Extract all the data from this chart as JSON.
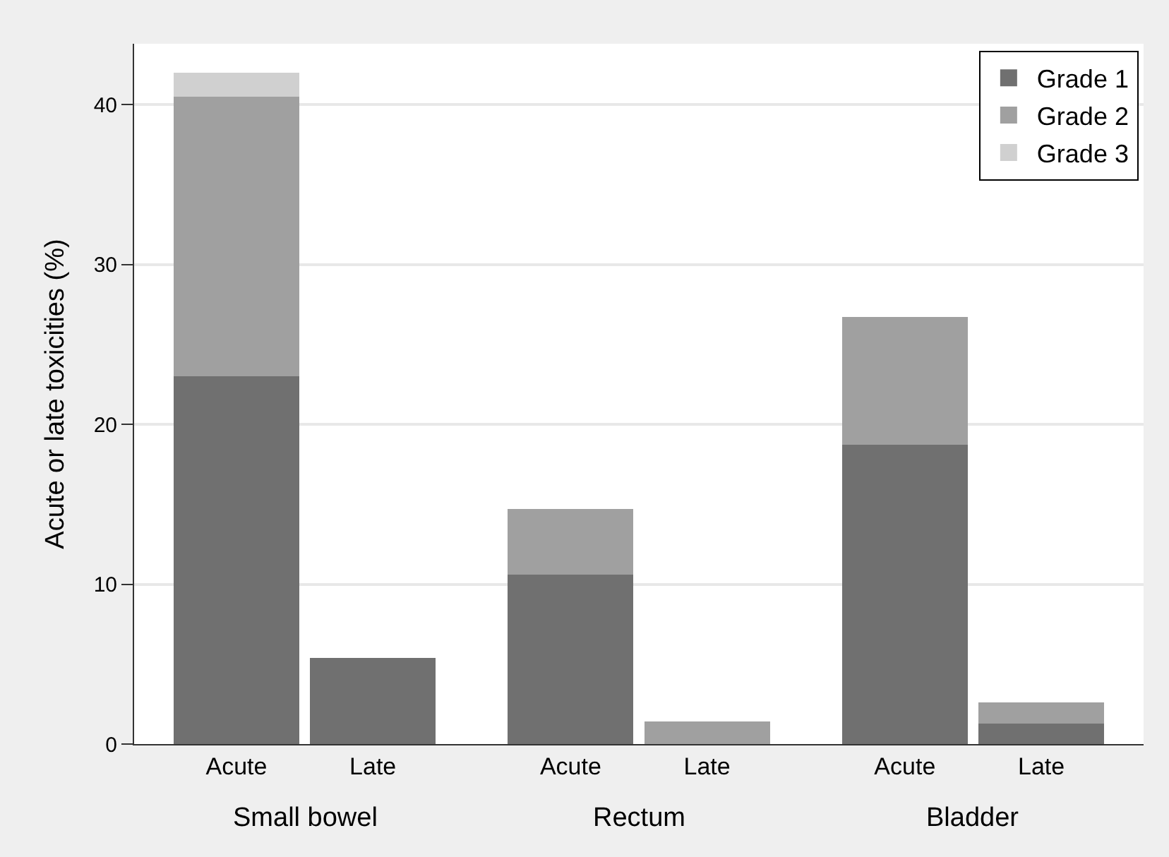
{
  "chart_data": {
    "type": "bar",
    "stacked": true,
    "ylabel": "Acute or late toxicities (%)",
    "categories": [
      "Acute",
      "Late",
      "Acute",
      "Late",
      "Acute",
      "Late"
    ],
    "annotations": [
      "Small bowel",
      "Rectum",
      "Bladder"
    ],
    "series": [
      {
        "name": "Grade 1",
        "color": "#707070",
        "values": [
          23.0,
          5.4,
          10.6,
          0,
          18.7,
          1.3
        ]
      },
      {
        "name": "Grade 2",
        "color": "#a0a0a0",
        "values": [
          17.5,
          0,
          4.1,
          1.4,
          8.0,
          1.3
        ]
      },
      {
        "name": "Grade 3",
        "color": "#d0d0d0",
        "values": [
          1.5,
          0,
          0,
          0,
          0,
          0
        ]
      }
    ],
    "ylim": [
      0,
      43.8
    ],
    "yticks": [
      0,
      10,
      20,
      30,
      40
    ],
    "grid": "y",
    "legend": "top right"
  }
}
